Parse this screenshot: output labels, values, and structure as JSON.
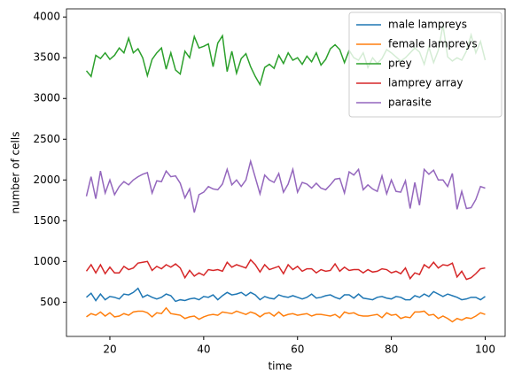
{
  "chart_data": {
    "type": "line",
    "xlabel": "time",
    "ylabel": "number of cells",
    "x": [
      15,
      16,
      17,
      18,
      19,
      20,
      21,
      22,
      23,
      24,
      25,
      26,
      27,
      28,
      29,
      30,
      31,
      32,
      33,
      34,
      35,
      36,
      37,
      38,
      39,
      40,
      41,
      42,
      43,
      44,
      45,
      46,
      47,
      48,
      49,
      50,
      51,
      52,
      53,
      54,
      55,
      56,
      57,
      58,
      59,
      60,
      61,
      62,
      63,
      64,
      65,
      66,
      67,
      68,
      69,
      70,
      71,
      72,
      73,
      74,
      75,
      76,
      77,
      78,
      79,
      80,
      81,
      82,
      83,
      84,
      85,
      86,
      87,
      88,
      89,
      90,
      91,
      92,
      93,
      94,
      95,
      96,
      97,
      98,
      99,
      100
    ],
    "series": [
      {
        "name": "male lampreys",
        "color": "#1f77b4",
        "values": [
          560,
          610,
          520,
          600,
          530,
          570,
          560,
          540,
          600,
          590,
          620,
          670,
          560,
          590,
          560,
          540,
          560,
          600,
          580,
          510,
          530,
          520,
          540,
          550,
          530,
          570,
          560,
          590,
          530,
          580,
          620,
          590,
          600,
          620,
          580,
          620,
          590,
          530,
          570,
          550,
          540,
          590,
          570,
          560,
          580,
          560,
          540,
          560,
          600,
          550,
          560,
          580,
          590,
          560,
          540,
          590,
          590,
          550,
          600,
          550,
          540,
          530,
          560,
          570,
          550,
          540,
          570,
          560,
          530,
          530,
          580,
          560,
          600,
          570,
          630,
          600,
          570,
          600,
          580,
          560,
          530,
          540,
          560,
          560,
          530,
          570
        ]
      },
      {
        "name": "female lampreys",
        "color": "#ff7f0e",
        "values": [
          320,
          360,
          340,
          380,
          330,
          370,
          320,
          330,
          360,
          340,
          380,
          390,
          390,
          370,
          320,
          370,
          360,
          430,
          360,
          350,
          340,
          300,
          320,
          330,
          290,
          320,
          340,
          350,
          340,
          380,
          370,
          360,
          390,
          370,
          350,
          380,
          360,
          320,
          360,
          370,
          330,
          380,
          330,
          350,
          360,
          340,
          350,
          360,
          330,
          350,
          350,
          340,
          330,
          350,
          310,
          380,
          360,
          370,
          340,
          330,
          330,
          340,
          350,
          310,
          370,
          340,
          350,
          300,
          320,
          310,
          380,
          380,
          390,
          340,
          350,
          300,
          330,
          300,
          260,
          300,
          280,
          310,
          300,
          330,
          370,
          350
        ]
      },
      {
        "name": "prey",
        "color": "#2ca02c",
        "values": [
          3340,
          3270,
          3530,
          3490,
          3560,
          3480,
          3530,
          3620,
          3560,
          3740,
          3560,
          3610,
          3500,
          3280,
          3480,
          3560,
          3620,
          3360,
          3560,
          3350,
          3300,
          3580,
          3500,
          3760,
          3620,
          3640,
          3670,
          3390,
          3680,
          3770,
          3330,
          3580,
          3310,
          3490,
          3550,
          3390,
          3270,
          3170,
          3380,
          3420,
          3370,
          3530,
          3430,
          3560,
          3470,
          3500,
          3420,
          3520,
          3450,
          3560,
          3410,
          3480,
          3610,
          3660,
          3600,
          3440,
          3590,
          3500,
          3470,
          3560,
          3380,
          3500,
          3430,
          3490,
          3600,
          3560,
          3510,
          3460,
          3500,
          3560,
          3620,
          3570,
          3420,
          3630,
          3440,
          3590,
          3900,
          3510,
          3460,
          3500,
          3470,
          3580,
          3780,
          3560,
          3700,
          3470
        ]
      },
      {
        "name": "lamprey array",
        "color": "#d62728",
        "values": [
          880,
          960,
          860,
          960,
          850,
          930,
          860,
          860,
          940,
          900,
          920,
          980,
          990,
          1000,
          890,
          940,
          910,
          960,
          930,
          970,
          920,
          800,
          890,
          820,
          860,
          830,
          900,
          890,
          900,
          880,
          990,
          930,
          960,
          940,
          920,
          1020,
          960,
          870,
          960,
          900,
          920,
          940,
          850,
          960,
          900,
          940,
          880,
          910,
          910,
          860,
          900,
          880,
          890,
          970,
          880,
          930,
          890,
          900,
          900,
          860,
          900,
          870,
          880,
          910,
          900,
          860,
          880,
          850,
          920,
          790,
          860,
          840,
          960,
          920,
          990,
          920,
          960,
          950,
          980,
          810,
          880,
          780,
          800,
          850,
          910,
          920
        ]
      },
      {
        "name": "parasite",
        "color": "#9467bd",
        "values": [
          1800,
          2040,
          1770,
          2110,
          1840,
          2000,
          1820,
          1920,
          1980,
          1940,
          2000,
          2040,
          2070,
          2090,
          1840,
          1990,
          1980,
          2110,
          2040,
          2050,
          1960,
          1780,
          1890,
          1600,
          1820,
          1850,
          1920,
          1890,
          1880,
          1950,
          2130,
          1940,
          2000,
          1920,
          2000,
          2230,
          2030,
          1830,
          2060,
          2000,
          1970,
          2080,
          1850,
          1950,
          2130,
          1850,
          1970,
          1950,
          1900,
          1960,
          1900,
          1880,
          1940,
          2010,
          2020,
          1840,
          2100,
          2060,
          2130,
          1880,
          1940,
          1890,
          1860,
          2050,
          1830,
          2000,
          1860,
          1850,
          1990,
          1650,
          1970,
          1690,
          2130,
          2070,
          2120,
          2000,
          2000,
          1920,
          2080,
          1640,
          1860,
          1650,
          1660,
          1760,
          1920,
          1900
        ]
      }
    ],
    "xlim": [
      10.75,
      104.25
    ],
    "xticks": [
      20,
      40,
      60,
      80,
      100
    ],
    "ylim": [
      80,
      4100
    ],
    "yticks": [
      500,
      1000,
      1500,
      2000,
      2500,
      3000,
      3500,
      4000
    ],
    "legend": "upper right"
  }
}
